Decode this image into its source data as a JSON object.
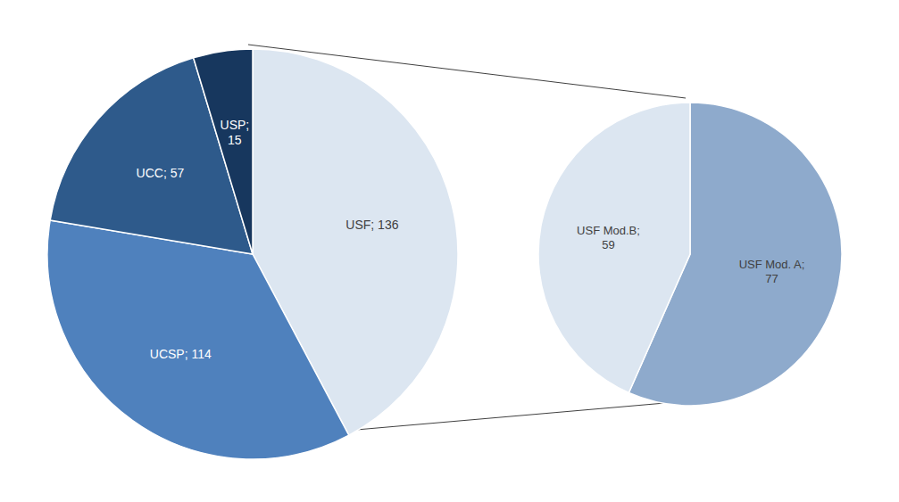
{
  "chart_data": [
    {
      "type": "pie",
      "categories": [
        "USF",
        "UCSP",
        "UCC",
        "USP"
      ],
      "values": [
        136,
        114,
        57,
        15
      ],
      "colors": [
        "#dce6f1",
        "#4f81bd",
        "#2e5a8b",
        "#17375e"
      ],
      "data_labels": true,
      "value_labels": [
        "USF; 136",
        "UCSP; 114",
        "UCC; 57",
        "USP;\n15"
      ]
    },
    {
      "type": "pie",
      "categories": [
        "USF Mod. A",
        "USF Mod.B"
      ],
      "values": [
        77,
        59
      ],
      "colors": [
        "#8eaacc",
        "#dce6f1"
      ],
      "data_labels": true,
      "value_labels": [
        "USF Mod. A;\n77",
        "USF Mod.B;\n59"
      ]
    }
  ]
}
